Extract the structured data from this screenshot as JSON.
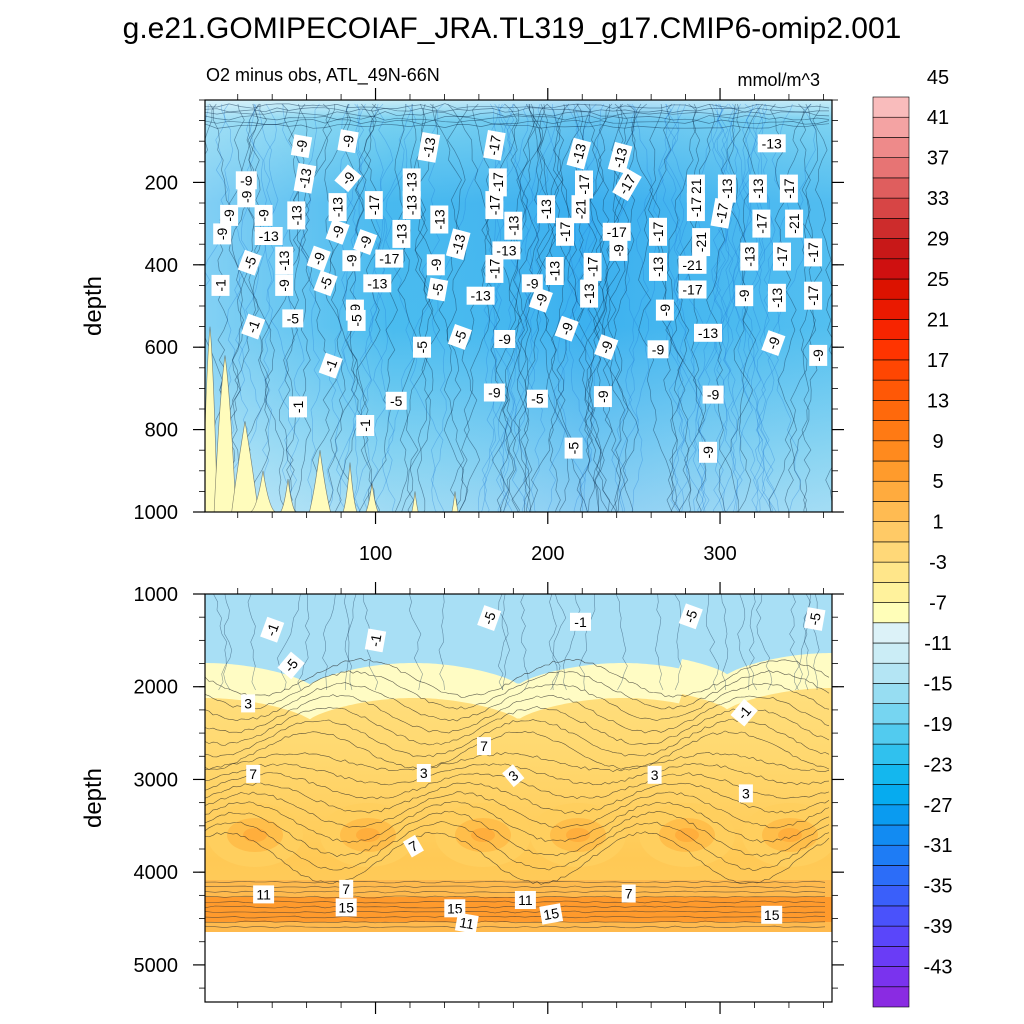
{
  "title": "g.e21.GOMIPECOIAF_JRA.TL319_g17.CMIP6-omip2.001",
  "chart_data": {
    "type": "heatmap",
    "subtitle": "O2 minus obs, ATL_49N-66N",
    "units": "mmol/m^3",
    "xlim": [
      1,
      365
    ],
    "x_ticks": [
      "100",
      "200",
      "300"
    ],
    "colorbar": {
      "levels": [
        -45,
        -43,
        -41,
        -39,
        -37,
        -35,
        -33,
        -31,
        -29,
        -27,
        -25,
        -23,
        -21,
        -19,
        -17,
        -15,
        -13,
        -11,
        -9,
        -7,
        -5,
        -3,
        -1,
        1,
        3,
        5,
        7,
        9,
        11,
        13,
        15,
        17,
        19,
        21,
        23,
        25,
        27,
        29,
        31,
        33,
        35,
        37,
        39,
        41,
        43,
        45
      ],
      "tick_labels": [
        "45",
        "41",
        "37",
        "33",
        "29",
        "25",
        "21",
        "17",
        "13",
        "9",
        "5",
        "1",
        "-3",
        "-7",
        "-11",
        "-15",
        "-19",
        "-23",
        "-27",
        "-31",
        "-35",
        "-39",
        "-43"
      ],
      "colors": [
        "#8a2be2",
        "#7a33ee",
        "#6a3cf6",
        "#5a46fa",
        "#4a52fb",
        "#3a5ffa",
        "#2c6df8",
        "#1e7cf5",
        "#128bf2",
        "#0a9bf0",
        "#06abef",
        "#14b7ee",
        "#30c1ee",
        "#52cbef",
        "#76d5f1",
        "#97ddf2",
        "#b4e5f4",
        "#cbedf6",
        "#dcf2f8",
        "#fffeb8",
        "#fff29c",
        "#ffe68a",
        "#ffd878",
        "#ffca66",
        "#ffbb52",
        "#ffab3e",
        "#ff9b2c",
        "#ff8a1e",
        "#ff7a14",
        "#ff690c",
        "#ff5806",
        "#ff4602",
        "#ff3400",
        "#f72400",
        "#ea1900",
        "#dc1200",
        "#cf1010",
        "#c81818",
        "#cd2c2c",
        "#d74545",
        "#df5e5e",
        "#e77474",
        "#ee8a8a",
        "#f4a3a3",
        "#f9bcbc"
      ]
    },
    "panels": [
      {
        "name": "upper-ocean",
        "ylabel": "depth",
        "ylim": [
          1000,
          0
        ],
        "y_ticks": [
          "200",
          "400",
          "600",
          "800",
          "1000"
        ],
        "contour_labels": [
          {
            "x": 57,
            "y": 112,
            "t": "-9",
            "r": -80
          },
          {
            "x": 84,
            "y": 100,
            "t": "-9",
            "r": -80
          },
          {
            "x": 131,
            "y": 115,
            "t": "-13",
            "r": -80
          },
          {
            "x": 169,
            "y": 110,
            "t": "-17",
            "r": -80
          },
          {
            "x": 218,
            "y": 130,
            "t": "-13",
            "r": -75
          },
          {
            "x": 242,
            "y": 140,
            "t": "-13",
            "r": -75
          },
          {
            "x": 330,
            "y": 105,
            "t": "-13",
            "r": 0
          },
          {
            "x": 25,
            "y": 195,
            "t": "-9",
            "r": 0
          },
          {
            "x": 59,
            "y": 190,
            "t": "-13",
            "r": -80
          },
          {
            "x": 84,
            "y": 190,
            "t": "-9",
            "r": -50
          },
          {
            "x": 121,
            "y": 200,
            "t": "-13",
            "r": -90
          },
          {
            "x": 171,
            "y": 200,
            "t": "-17",
            "r": -90
          },
          {
            "x": 221,
            "y": 205,
            "t": "-17",
            "r": -90
          },
          {
            "x": 246,
            "y": 205,
            "t": "-17",
            "r": -60
          },
          {
            "x": 286,
            "y": 215,
            "t": "-21",
            "r": -90
          },
          {
            "x": 304,
            "y": 215,
            "t": "-13",
            "r": -90
          },
          {
            "x": 322,
            "y": 215,
            "t": "-13",
            "r": -90
          },
          {
            "x": 340,
            "y": 215,
            "t": "-17",
            "r": -90
          },
          {
            "x": 25,
            "y": 235,
            "t": "-9",
            "r": -90
          },
          {
            "x": 99,
            "y": 255,
            "t": "-17",
            "r": -90
          },
          {
            "x": 121,
            "y": 255,
            "t": "-13",
            "r": -90
          },
          {
            "x": 169,
            "y": 255,
            "t": "-17",
            "r": -90
          },
          {
            "x": 199,
            "y": 265,
            "t": "-13",
            "r": -90
          },
          {
            "x": 219,
            "y": 265,
            "t": "-21",
            "r": -90
          },
          {
            "x": 286,
            "y": 260,
            "t": "-17",
            "r": -90
          },
          {
            "x": 15,
            "y": 280,
            "t": "-9",
            "r": -90
          },
          {
            "x": 35,
            "y": 280,
            "t": "-9",
            "r": -90
          },
          {
            "x": 54,
            "y": 280,
            "t": "-13",
            "r": -90
          },
          {
            "x": 78,
            "y": 260,
            "t": "-13",
            "r": -90
          },
          {
            "x": 137,
            "y": 290,
            "t": "-13",
            "r": -90
          },
          {
            "x": 180,
            "y": 305,
            "t": "-13",
            "r": -90
          },
          {
            "x": 210,
            "y": 320,
            "t": "-17",
            "r": -90
          },
          {
            "x": 240,
            "y": 320,
            "t": "-17",
            "r": 0
          },
          {
            "x": 264,
            "y": 320,
            "t": "-17",
            "r": -90
          },
          {
            "x": 301,
            "y": 275,
            "t": "-17",
            "r": -80
          },
          {
            "x": 324,
            "y": 300,
            "t": "-17",
            "r": -90
          },
          {
            "x": 343,
            "y": 300,
            "t": "-21",
            "r": -90
          },
          {
            "x": 11,
            "y": 325,
            "t": "-9",
            "r": -90
          },
          {
            "x": 38,
            "y": 330,
            "t": "-13",
            "r": 0
          },
          {
            "x": 78,
            "y": 320,
            "t": "-9",
            "r": -70
          },
          {
            "x": 94,
            "y": 345,
            "t": "-9",
            "r": -70
          },
          {
            "x": 115,
            "y": 325,
            "t": "-13",
            "r": -90
          },
          {
            "x": 148,
            "y": 350,
            "t": "-13",
            "r": -75
          },
          {
            "x": 176,
            "y": 365,
            "t": "-13",
            "r": 0
          },
          {
            "x": 241,
            "y": 365,
            "t": "-9",
            "r": -90
          },
          {
            "x": 289,
            "y": 345,
            "t": "-21",
            "r": -90
          },
          {
            "x": 27,
            "y": 395,
            "t": "-5",
            "r": -70
          },
          {
            "x": 47,
            "y": 390,
            "t": "-13",
            "r": -90
          },
          {
            "x": 67,
            "y": 385,
            "t": "-9",
            "r": -70
          },
          {
            "x": 86,
            "y": 390,
            "t": "-9",
            "r": -90
          },
          {
            "x": 108,
            "y": 385,
            "t": "-17",
            "r": 0
          },
          {
            "x": 135,
            "y": 400,
            "t": "-9",
            "r": -90
          },
          {
            "x": 169,
            "y": 410,
            "t": "-17",
            "r": -90
          },
          {
            "x": 204,
            "y": 415,
            "t": "-13",
            "r": -90
          },
          {
            "x": 226,
            "y": 405,
            "t": "-17",
            "r": -90
          },
          {
            "x": 264,
            "y": 405,
            "t": "-13",
            "r": -90
          },
          {
            "x": 284,
            "y": 400,
            "t": "-21",
            "r": 0
          },
          {
            "x": 317,
            "y": 380,
            "t": "-13",
            "r": -90
          },
          {
            "x": 336,
            "y": 380,
            "t": "-17",
            "r": -90
          },
          {
            "x": 354,
            "y": 370,
            "t": "-17",
            "r": -90
          },
          {
            "x": 10,
            "y": 450,
            "t": "-1",
            "r": -90
          },
          {
            "x": 47,
            "y": 450,
            "t": "-9",
            "r": -90
          },
          {
            "x": 71,
            "y": 445,
            "t": "-5",
            "r": -70
          },
          {
            "x": 101,
            "y": 445,
            "t": "-13",
            "r": 0
          },
          {
            "x": 136,
            "y": 460,
            "t": "-5",
            "r": -80
          },
          {
            "x": 161,
            "y": 475,
            "t": "-13",
            "r": 0
          },
          {
            "x": 191,
            "y": 445,
            "t": "-9",
            "r": 0
          },
          {
            "x": 196,
            "y": 485,
            "t": "-9",
            "r": -70
          },
          {
            "x": 224,
            "y": 470,
            "t": "-13",
            "r": -90
          },
          {
            "x": 284,
            "y": 460,
            "t": "-17",
            "r": 0
          },
          {
            "x": 314,
            "y": 475,
            "t": "-9",
            "r": -90
          },
          {
            "x": 333,
            "y": 480,
            "t": "-13",
            "r": -90
          },
          {
            "x": 354,
            "y": 475,
            "t": "-17",
            "r": -90
          },
          {
            "x": 88,
            "y": 510,
            "t": "-9",
            "r": -90
          },
          {
            "x": 29,
            "y": 550,
            "t": "-1",
            "r": -70
          },
          {
            "x": 52,
            "y": 530,
            "t": "-5",
            "r": 0
          },
          {
            "x": 89,
            "y": 535,
            "t": "-5",
            "r": -90
          },
          {
            "x": 149,
            "y": 575,
            "t": "-5",
            "r": -70
          },
          {
            "x": 175,
            "y": 580,
            "t": "-9",
            "r": 0
          },
          {
            "x": 211,
            "y": 555,
            "t": "-9",
            "r": -70
          },
          {
            "x": 268,
            "y": 510,
            "t": "-9",
            "r": -90
          },
          {
            "x": 293,
            "y": 565,
            "t": "-13",
            "r": 0
          },
          {
            "x": 331,
            "y": 590,
            "t": "-9",
            "r": -70
          },
          {
            "x": 74,
            "y": 645,
            "t": "-1",
            "r": -70
          },
          {
            "x": 127,
            "y": 600,
            "t": "-5",
            "r": -90
          },
          {
            "x": 234,
            "y": 600,
            "t": "-9",
            "r": -70
          },
          {
            "x": 264,
            "y": 605,
            "t": "-9",
            "r": 0
          },
          {
            "x": 357,
            "y": 620,
            "t": "-9",
            "r": -90
          },
          {
            "x": 55,
            "y": 745,
            "t": "-1",
            "r": -90
          },
          {
            "x": 112,
            "y": 730,
            "t": "-5",
            "r": 0
          },
          {
            "x": 169,
            "y": 710,
            "t": "-9",
            "r": 0
          },
          {
            "x": 194,
            "y": 725,
            "t": "-5",
            "r": 0
          },
          {
            "x": 232,
            "y": 720,
            "t": "-9",
            "r": -90
          },
          {
            "x": 296,
            "y": 715,
            "t": "-9",
            "r": 0
          },
          {
            "x": 94,
            "y": 790,
            "t": "-1",
            "r": -90
          },
          {
            "x": 215,
            "y": 845,
            "t": "-5",
            "r": -90
          },
          {
            "x": 293,
            "y": 855,
            "t": "-9",
            "r": -90
          }
        ]
      },
      {
        "name": "deep-ocean",
        "ylabel": "depth",
        "ylim": [
          5400,
          1000
        ],
        "y_ticks": [
          "1000",
          "2000",
          "3000",
          "4000",
          "5000"
        ],
        "contour_labels": [
          {
            "x": 40,
            "y": 1385,
            "t": "-1",
            "r": -70
          },
          {
            "x": 100,
            "y": 1500,
            "t": "-1",
            "r": -80
          },
          {
            "x": 51,
            "y": 1770,
            "t": "-5",
            "r": -50
          },
          {
            "x": 166,
            "y": 1260,
            "t": "-5",
            "r": -70
          },
          {
            "x": 219,
            "y": 1300,
            "t": "-1",
            "r": 0
          },
          {
            "x": 283,
            "y": 1240,
            "t": "-5",
            "r": -70
          },
          {
            "x": 355,
            "y": 1270,
            "t": "-5",
            "r": -80
          },
          {
            "x": 26,
            "y": 2180,
            "t": "3",
            "r": 0
          },
          {
            "x": 314,
            "y": 2280,
            "t": "-1",
            "r": -50
          },
          {
            "x": 29,
            "y": 2940,
            "t": "7",
            "r": 0
          },
          {
            "x": 128,
            "y": 2930,
            "t": "3",
            "r": 0
          },
          {
            "x": 163,
            "y": 2640,
            "t": "7",
            "r": 0
          },
          {
            "x": 180,
            "y": 2960,
            "t": "3",
            "r": -40
          },
          {
            "x": 262,
            "y": 2950,
            "t": "3",
            "r": 0
          },
          {
            "x": 315,
            "y": 3150,
            "t": "3",
            "r": 0
          },
          {
            "x": 122,
            "y": 3720,
            "t": "7",
            "r": -30
          },
          {
            "x": 35,
            "y": 4240,
            "t": "11",
            "r": 0
          },
          {
            "x": 83,
            "y": 4380,
            "t": "15",
            "r": 0
          },
          {
            "x": 83,
            "y": 4180,
            "t": "7",
            "r": 0
          },
          {
            "x": 146,
            "y": 4390,
            "t": "15",
            "r": 0
          },
          {
            "x": 153,
            "y": 4550,
            "t": "11",
            "r": 10
          },
          {
            "x": 187,
            "y": 4300,
            "t": "11",
            "r": 0
          },
          {
            "x": 202,
            "y": 4450,
            "t": "15",
            "r": -10
          },
          {
            "x": 247,
            "y": 4230,
            "t": "7",
            "r": 0
          },
          {
            "x": 330,
            "y": 4460,
            "t": "15",
            "r": 0
          }
        ]
      }
    ]
  }
}
